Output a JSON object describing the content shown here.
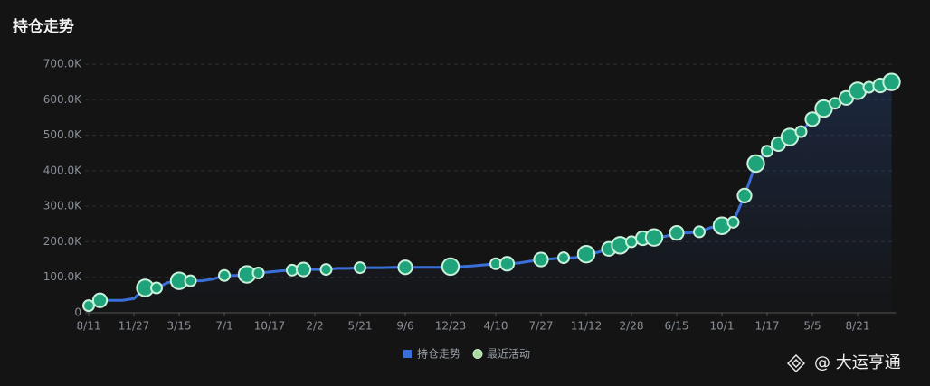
{
  "chart_data": {
    "type": "line",
    "title": "持仓走势",
    "categories": [
      "8/11",
      null,
      null,
      null,
      "11/27",
      null,
      null,
      null,
      "3/15",
      null,
      null,
      null,
      "7/1",
      null,
      null,
      null,
      "10/17",
      null,
      null,
      null,
      "2/2",
      null,
      null,
      null,
      "5/21",
      null,
      null,
      null,
      "9/6",
      null,
      null,
      null,
      "12/23",
      null,
      null,
      null,
      "4/10",
      null,
      null,
      null,
      "7/27",
      null,
      null,
      null,
      "11/12",
      null,
      null,
      null,
      "2/28",
      null,
      null,
      null,
      "6/15",
      null,
      null,
      null,
      "10/1",
      null,
      null,
      null,
      "1/17",
      null,
      null,
      null,
      "5/5",
      null,
      null,
      null,
      "8/21",
      null,
      null,
      null
    ],
    "series": [
      {
        "name": "持仓走势",
        "type": "line",
        "color": "#3b6fd8",
        "values": [
          20000,
          35000,
          35000,
          35000,
          40000,
          70000,
          70000,
          85000,
          90000,
          90000,
          90000,
          95000,
          105000,
          105000,
          108000,
          112000,
          115000,
          118000,
          120000,
          122000,
          122000,
          122000,
          125000,
          125000,
          127000,
          127000,
          127000,
          128000,
          128000,
          128000,
          128000,
          128000,
          130000,
          130000,
          132000,
          135000,
          138000,
          138000,
          140000,
          145000,
          150000,
          152000,
          155000,
          155000,
          165000,
          170000,
          180000,
          190000,
          200000,
          210000,
          212000,
          215000,
          225000,
          225000,
          228000,
          240000,
          245000,
          255000,
          330000,
          420000,
          455000,
          475000,
          495000,
          510000,
          545000,
          575000,
          590000,
          605000,
          625000,
          635000,
          640000,
          650000
        ]
      },
      {
        "name": "最近活动",
        "type": "scatter",
        "color": "#1fa37a",
        "values": [
          20000,
          35000,
          null,
          null,
          null,
          70000,
          70000,
          null,
          90000,
          90000,
          null,
          null,
          105000,
          null,
          108000,
          112000,
          null,
          null,
          120000,
          122000,
          null,
          122000,
          null,
          null,
          127000,
          null,
          null,
          null,
          128000,
          null,
          null,
          null,
          130000,
          null,
          null,
          null,
          138000,
          138000,
          null,
          null,
          150000,
          null,
          155000,
          null,
          165000,
          null,
          180000,
          190000,
          200000,
          210000,
          212000,
          null,
          225000,
          null,
          228000,
          null,
          245000,
          255000,
          330000,
          420000,
          455000,
          475000,
          495000,
          510000,
          545000,
          575000,
          590000,
          605000,
          625000,
          635000,
          640000,
          650000
        ]
      }
    ],
    "ylim": [
      0,
      700000
    ],
    "yticks": [
      0,
      {
        "value": 100000,
        "label": "100.0K"
      },
      {
        "value": 200000,
        "label": "200.0K"
      },
      {
        "value": 300000,
        "label": "300.0K"
      },
      {
        "value": 400000,
        "label": "400.0K"
      },
      {
        "value": 500000,
        "label": "500.0K"
      },
      {
        "value": 600000,
        "label": "600.0K"
      },
      {
        "value": 700000,
        "label": "700.0K"
      }
    ],
    "grid": true,
    "legend": "bottom",
    "watermark": "@ 大运亨通"
  }
}
